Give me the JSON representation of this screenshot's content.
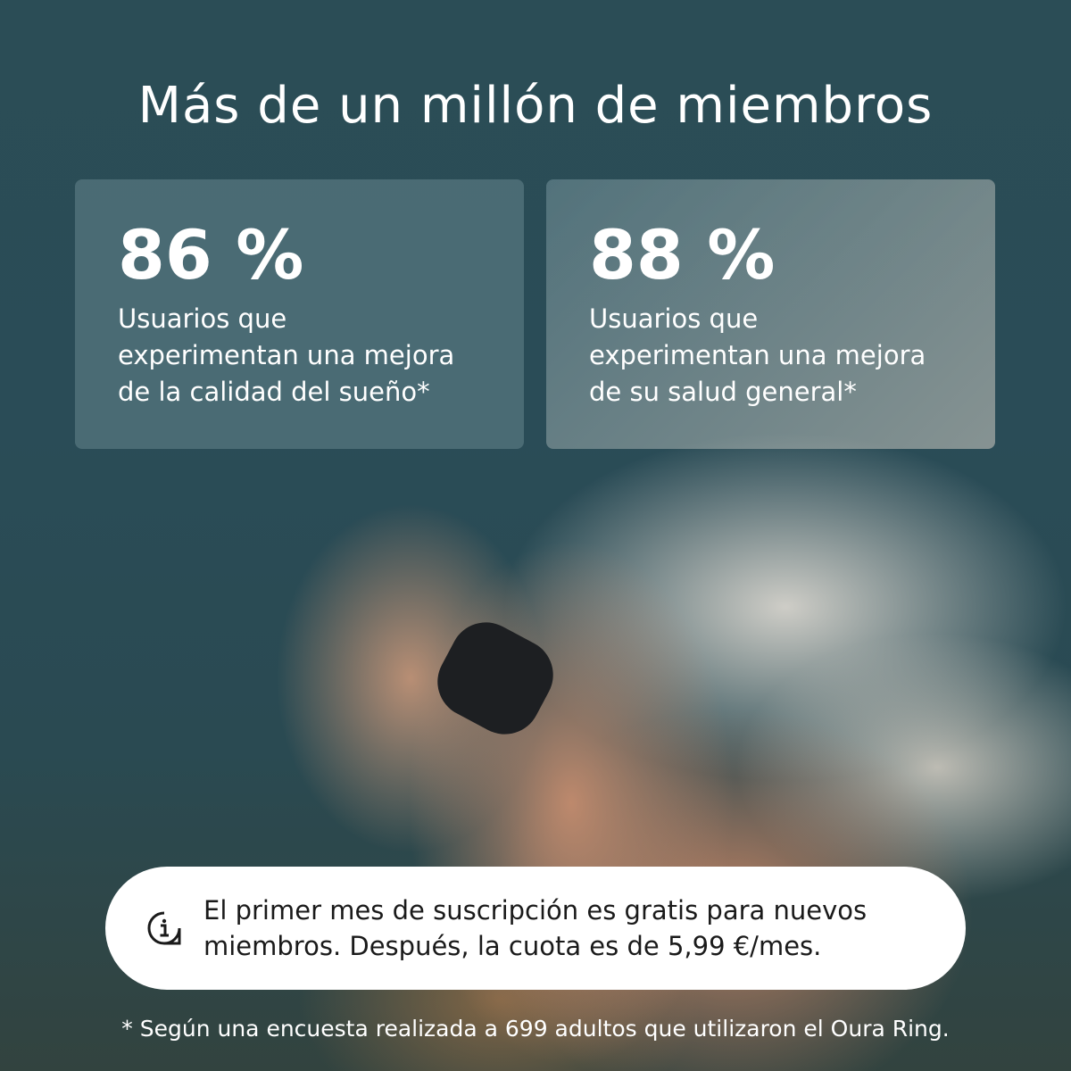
{
  "title": "Más de un millón de miembros",
  "stats": [
    {
      "value": "86 %",
      "lines": [
        "Usuarios que",
        "experimentan una mejora",
        "de la calidad del sueño*"
      ]
    },
    {
      "value": "88 %",
      "lines": [
        "Usuarios que",
        "experimentan una mejora",
        "de su salud general*"
      ]
    }
  ],
  "notice": {
    "icon": "info-bubble-icon",
    "lines": [
      "El primer mes de suscripción es gratis para nuevos",
      "miembros. Después, la cuota es de 5,99 €/mes."
    ]
  },
  "footnote": "* Según una encuesta realizada a 699 adultos que utilizaron el Oura Ring."
}
